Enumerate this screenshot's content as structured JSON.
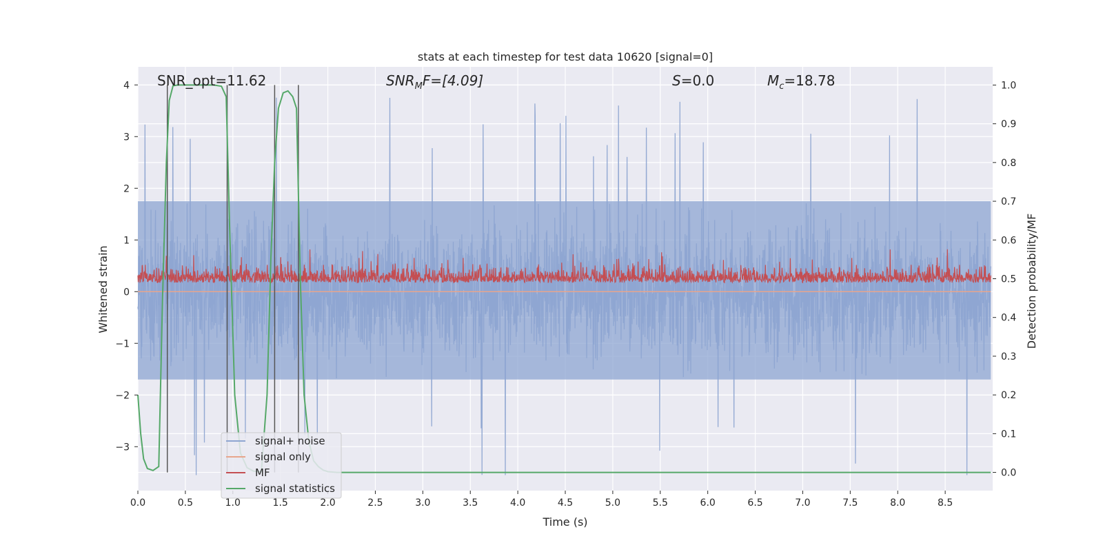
{
  "chart_data": {
    "type": "line",
    "title": "stats at each timestep for test data 10620 [signal=0]",
    "xlabel": "Time (s)",
    "ylabel": "Whitened strain",
    "y2label": "Detection probability/MF",
    "xlim": [
      0.0,
      9.0
    ],
    "ylim": [
      -3.85,
      4.35
    ],
    "y2lim": [
      -0.047,
      1.047
    ],
    "xticks": [
      "0.0",
      "0.5",
      "1.0",
      "1.5",
      "2.0",
      "2.5",
      "3.0",
      "3.5",
      "4.0",
      "4.5",
      "5.0",
      "5.5",
      "6.0",
      "6.5",
      "7.0",
      "7.5",
      "8.0",
      "8.5"
    ],
    "yticks": [
      "4",
      "3",
      "2",
      "1",
      "0",
      "−1",
      "−2",
      "−3"
    ],
    "y2ticks": [
      "1.0",
      "0.9",
      "0.8",
      "0.7",
      "0.6",
      "0.5",
      "0.4",
      "0.3",
      "0.2",
      "0.1",
      "0.0"
    ],
    "grid": true,
    "legend_position": "lower-left",
    "annotations": {
      "snr_opt": "SNR_opt=11.62",
      "snr_mf_label": "SNR",
      "snr_mf_sub": "M",
      "snr_mf_value": "F=[4.09]",
      "s_label": "S",
      "s_value": "=0.0",
      "mc_label": "M",
      "mc_sub": "c",
      "mc_value": "=18.78"
    },
    "vertical_lines_x": [
      0.31,
      0.94,
      1.44,
      1.69
    ],
    "series": [
      {
        "name": "signal+ noise",
        "color": "#8ea5d1",
        "axis": "left",
        "envelope_typical": [
          -1.7,
          1.75
        ],
        "envelope_peaks": [
          -3.55,
          4.0
        ]
      },
      {
        "name": "signal only",
        "color": "#e8a58c",
        "axis": "left",
        "values_constant": 0.0
      },
      {
        "name": "MF",
        "color": "#c44e52",
        "axis": "right",
        "baseline": 0.5,
        "range_typical": [
          0.47,
          0.58
        ],
        "range_peaks": [
          0.46,
          0.6
        ]
      },
      {
        "name": "signal statistics",
        "color": "#55a868",
        "axis": "right",
        "x": [
          0.0,
          0.03,
          0.06,
          0.1,
          0.16,
          0.22,
          0.26,
          0.3,
          0.33,
          0.37,
          0.42,
          0.5,
          0.6,
          0.7,
          0.8,
          0.88,
          0.93,
          0.97,
          1.02,
          1.08,
          1.15,
          1.22,
          1.3,
          1.36,
          1.4,
          1.44,
          1.48,
          1.53,
          1.58,
          1.63,
          1.67,
          1.71,
          1.75,
          1.8,
          1.85,
          1.9,
          1.95,
          2.0,
          2.1,
          2.2,
          2.4,
          3.0,
          4.0,
          5.0,
          6.0,
          7.0,
          8.0,
          8.98
        ],
        "y": [
          0.2,
          0.1,
          0.035,
          0.01,
          0.005,
          0.015,
          0.45,
          0.8,
          0.96,
          0.998,
          1.0,
          1.0,
          1.0,
          1.0,
          1.0,
          0.997,
          0.97,
          0.6,
          0.2,
          0.05,
          0.012,
          0.003,
          0.002,
          0.2,
          0.55,
          0.8,
          0.94,
          0.98,
          0.985,
          0.97,
          0.94,
          0.5,
          0.2,
          0.08,
          0.03,
          0.015,
          0.006,
          0.002,
          0.0,
          0.0,
          0.0,
          0.0,
          0.0,
          0.0,
          0.0,
          0.0,
          0.0,
          0.0
        ]
      }
    ]
  }
}
